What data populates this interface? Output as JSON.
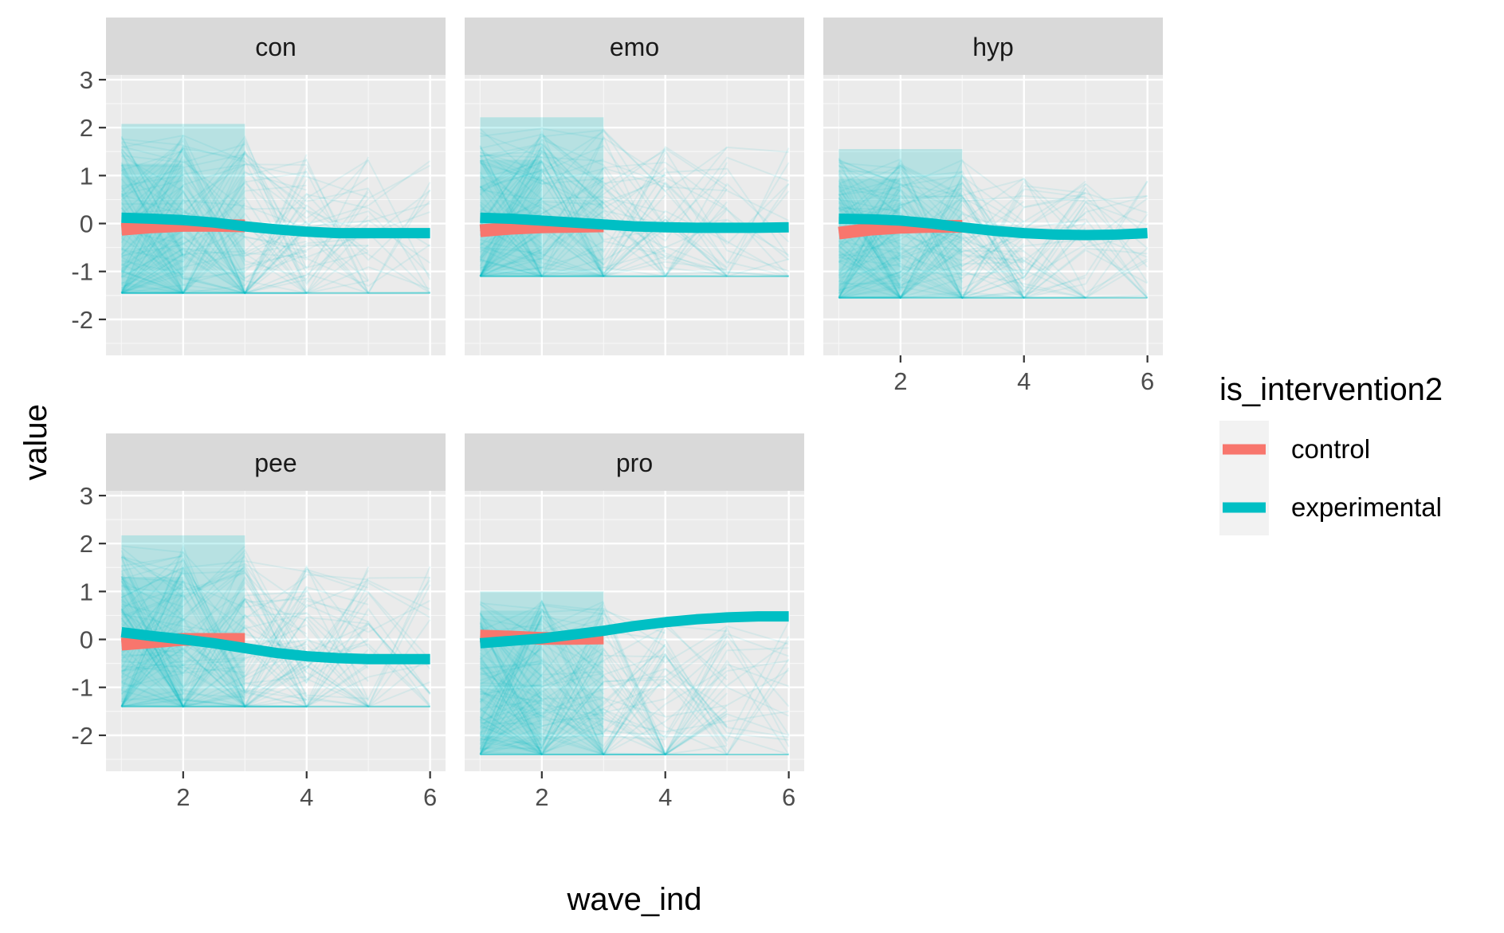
{
  "chart_data": {
    "type": "line",
    "xlabel": "wave_ind",
    "ylabel": "value",
    "xlim": [
      0.75,
      6.25
    ],
    "ylim": [
      -2.75,
      3.1
    ],
    "x_ticks": [
      2,
      4,
      6
    ],
    "y_ticks": [
      -2,
      -1,
      0,
      1,
      2,
      3
    ],
    "grid": true,
    "legend": {
      "title": "is_intervention2",
      "placement": "right",
      "entries": [
        {
          "name": "control",
          "color": "#F8766D"
        },
        {
          "name": "experimental",
          "color": "#00BFC4"
        }
      ]
    },
    "panels": [
      {
        "facet": "con",
        "band_min": -1.45,
        "band_max": 2.7,
        "series": [
          {
            "name": "control",
            "x": [
              1,
              1.5,
              2,
              2.5,
              3
            ],
            "y": [
              -0.12,
              -0.07,
              -0.04,
              -0.04,
              -0.05
            ]
          },
          {
            "name": "experimental",
            "x": [
              1,
              1.5,
              2,
              2.5,
              3,
              3.5,
              4,
              4.5,
              5,
              5.5,
              6
            ],
            "y": [
              0.12,
              0.1,
              0.07,
              0.02,
              -0.06,
              -0.12,
              -0.17,
              -0.2,
              -0.2,
              -0.2,
              -0.2
            ]
          }
        ]
      },
      {
        "facet": "emo",
        "band_min": -1.1,
        "band_max": 2.8,
        "series": [
          {
            "name": "control",
            "x": [
              1,
              1.5,
              2,
              2.5,
              3
            ],
            "y": [
              -0.15,
              -0.1,
              -0.07,
              -0.06,
              -0.05
            ]
          },
          {
            "name": "experimental",
            "x": [
              1,
              1.5,
              2,
              2.5,
              3,
              3.5,
              4,
              4.5,
              5,
              5.5,
              6
            ],
            "y": [
              0.12,
              0.1,
              0.06,
              0.02,
              -0.02,
              -0.06,
              -0.08,
              -0.09,
              -0.09,
              -0.09,
              -0.08
            ]
          }
        ]
      },
      {
        "facet": "hyp",
        "band_min": -1.55,
        "band_max": 2.1,
        "series": [
          {
            "name": "control",
            "x": [
              1,
              1.5,
              2,
              2.5,
              3
            ],
            "y": [
              -0.2,
              -0.12,
              -0.08,
              -0.06,
              -0.06
            ]
          },
          {
            "name": "experimental",
            "x": [
              1,
              1.5,
              2,
              2.5,
              3,
              3.5,
              4,
              4.5,
              5,
              5.5,
              6
            ],
            "y": [
              0.1,
              0.09,
              0.06,
              0.0,
              -0.08,
              -0.15,
              -0.2,
              -0.23,
              -0.24,
              -0.23,
              -0.2
            ]
          }
        ]
      },
      {
        "facet": "pee",
        "band_min": -1.4,
        "band_max": 2.8,
        "series": [
          {
            "name": "control",
            "x": [
              1,
              1.5,
              2,
              2.5,
              3
            ],
            "y": [
              -0.1,
              -0.05,
              0.0,
              0.0,
              0.0
            ]
          },
          {
            "name": "experimental",
            "x": [
              1,
              1.5,
              2,
              2.5,
              3,
              3.5,
              4,
              4.5,
              5,
              5.5,
              6
            ],
            "y": [
              0.15,
              0.07,
              0.0,
              -0.08,
              -0.18,
              -0.28,
              -0.35,
              -0.39,
              -0.41,
              -0.41,
              -0.41
            ]
          }
        ]
      },
      {
        "facet": "pro",
        "band_min": -2.4,
        "band_max": 1.6,
        "series": [
          {
            "name": "control",
            "x": [
              1,
              1.5,
              2,
              2.5,
              3
            ],
            "y": [
              0.07,
              0.05,
              0.02,
              0.02,
              0.03
            ]
          },
          {
            "name": "experimental",
            "x": [
              1,
              1.5,
              2,
              2.5,
              3,
              3.5,
              4,
              4.5,
              5,
              5.5,
              6
            ],
            "y": [
              -0.08,
              -0.03,
              0.02,
              0.1,
              0.18,
              0.28,
              0.36,
              0.42,
              0.46,
              0.48,
              0.48
            ]
          }
        ]
      }
    ]
  }
}
